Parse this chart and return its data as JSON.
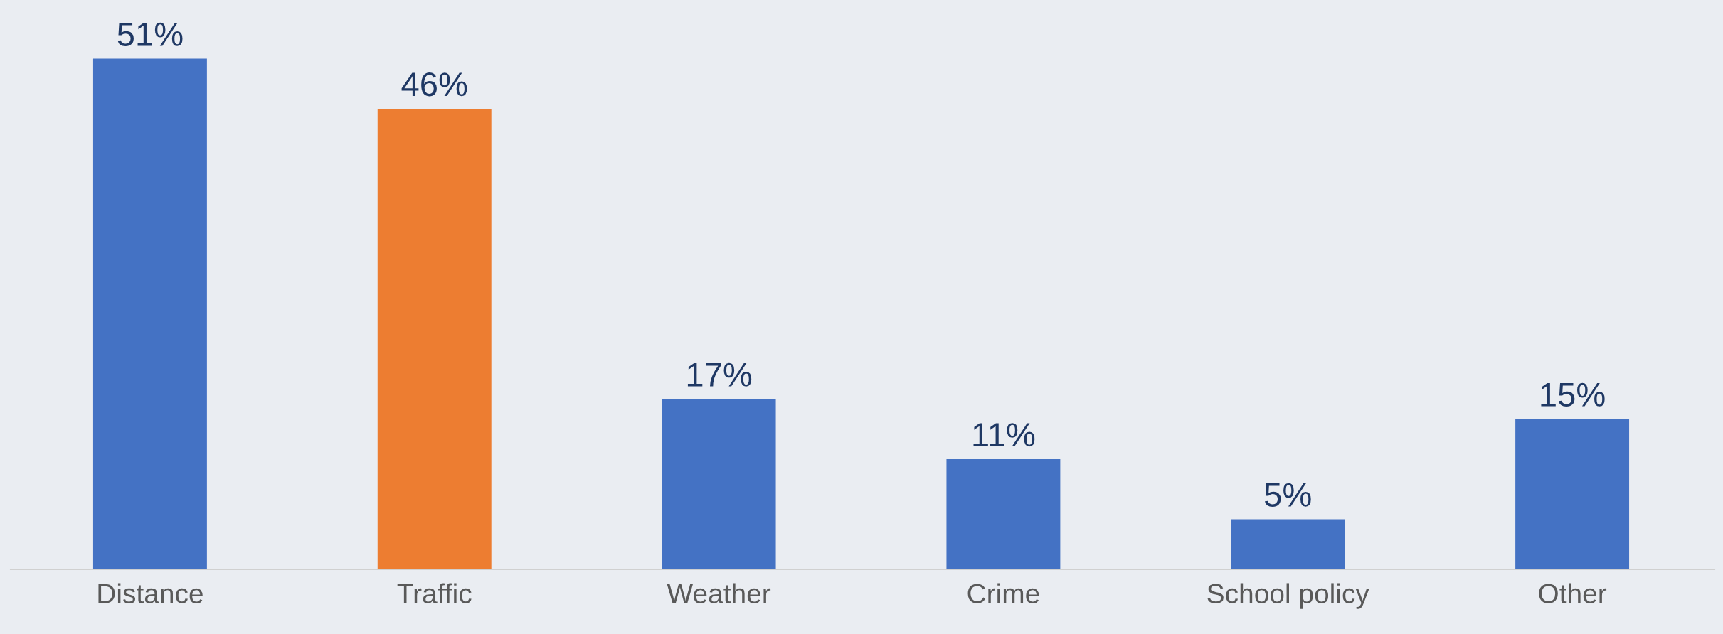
{
  "chart_data": {
    "type": "bar",
    "categories": [
      "Distance",
      "Traffic",
      "Weather",
      "Crime",
      "School policy",
      "Other"
    ],
    "values": [
      51,
      46,
      17,
      11,
      5,
      15
    ],
    "colors": [
      "#4472c4",
      "#ed7d31",
      "#4472c4",
      "#4472c4",
      "#4472c4",
      "#4472c4"
    ],
    "value_labels": [
      "51%",
      "46%",
      "17%",
      "11%",
      "5%",
      "15%"
    ],
    "grid": false,
    "legend": false
  }
}
